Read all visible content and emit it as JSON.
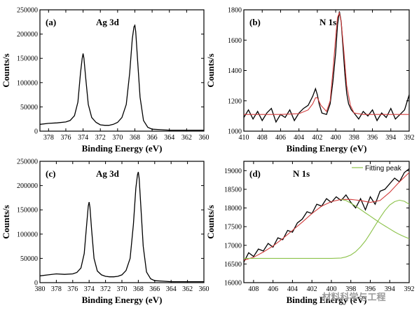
{
  "chart_data": [
    {
      "type": "line",
      "panel_label": "(a)",
      "title": "Ag 3d",
      "xlabel": "Binding Energy (eV)",
      "ylabel": "Counts/s",
      "xlim": [
        379,
        360
      ],
      "ylim": [
        0,
        250000
      ],
      "x_ticks": [
        378,
        376,
        374,
        372,
        370,
        368,
        366,
        364,
        362,
        360
      ],
      "y_ticks": [
        0,
        50000,
        100000,
        150000,
        200000,
        250000
      ],
      "series": [
        {
          "color": "#000000",
          "x": [
            379,
            378,
            377,
            376,
            375.5,
            375,
            374.6,
            374.3,
            374.1,
            374.0,
            373.9,
            373.7,
            373.4,
            373.0,
            372.5,
            372,
            371.5,
            371,
            370.5,
            370,
            369.5,
            369,
            368.6,
            368.3,
            368.1,
            368.0,
            367.9,
            367.7,
            367.4,
            367.0,
            366.5,
            366,
            365,
            364,
            363,
            362,
            361,
            360
          ],
          "y": [
            14000,
            16000,
            17000,
            19000,
            22000,
            32000,
            60000,
            120000,
            150000,
            160000,
            150000,
            110000,
            55000,
            28000,
            18000,
            13000,
            12000,
            12000,
            14000,
            18000,
            28000,
            55000,
            120000,
            190000,
            215000,
            218000,
            205000,
            150000,
            70000,
            22000,
            8000,
            4000,
            3000,
            2000,
            2000,
            2000,
            2000,
            2000
          ]
        }
      ]
    },
    {
      "type": "line",
      "panel_label": "(b)",
      "title": "N 1s",
      "xlabel": "Binding Energy (eV)",
      "ylabel": "Counts/s",
      "xlim": [
        410,
        392
      ],
      "ylim": [
        1000,
        1800
      ],
      "x_ticks": [
        410,
        408,
        406,
        404,
        402,
        400,
        398,
        396,
        394,
        392
      ],
      "y_ticks": [
        1000,
        1200,
        1400,
        1600,
        1800
      ],
      "series": [
        {
          "color": "#000000",
          "x": [
            410,
            409.5,
            409,
            408.5,
            408,
            407.5,
            407,
            406.5,
            406,
            405.5,
            405,
            404.5,
            404,
            403.5,
            403,
            402.5,
            402.2,
            402,
            401.8,
            401.5,
            401,
            400.6,
            400.3,
            400.0,
            399.8,
            399.6,
            399.4,
            399.2,
            399.0,
            398.8,
            398.6,
            398.3,
            398,
            397.5,
            397,
            396.5,
            396,
            395.5,
            395,
            394.5,
            394,
            393.5,
            393,
            392.5,
            392
          ],
          "y": [
            1090,
            1140,
            1080,
            1130,
            1070,
            1120,
            1150,
            1060,
            1110,
            1090,
            1140,
            1070,
            1120,
            1150,
            1170,
            1230,
            1280,
            1240,
            1180,
            1120,
            1110,
            1180,
            1330,
            1520,
            1700,
            1790,
            1720,
            1550,
            1380,
            1250,
            1180,
            1140,
            1120,
            1080,
            1130,
            1100,
            1140,
            1070,
            1120,
            1090,
            1150,
            1080,
            1110,
            1140,
            1240
          ]
        },
        {
          "color": "#d23c3c",
          "x": [
            410,
            408,
            406,
            404,
            403,
            402.5,
            402.2,
            402,
            401.6,
            401,
            400.6,
            400.3,
            400.0,
            399.8,
            399.6,
            399.4,
            399.1,
            398.8,
            398.4,
            398,
            397,
            396,
            394,
            392
          ],
          "y": [
            1110,
            1110,
            1110,
            1115,
            1140,
            1180,
            1220,
            1220,
            1170,
            1130,
            1200,
            1400,
            1620,
            1750,
            1780,
            1720,
            1520,
            1300,
            1170,
            1120,
            1110,
            1110,
            1110,
            1110
          ]
        }
      ]
    },
    {
      "type": "line",
      "panel_label": "(c)",
      "title": "Ag 3d",
      "xlabel": "Binding Energy (eV)",
      "ylabel": "Counts/s",
      "xlim": [
        380,
        360
      ],
      "ylim": [
        0,
        250000
      ],
      "x_ticks": [
        380,
        378,
        376,
        374,
        372,
        370,
        368,
        366,
        364,
        362,
        360
      ],
      "y_ticks": [
        0,
        50000,
        100000,
        150000,
        200000,
        250000
      ],
      "series": [
        {
          "color": "#000000",
          "x": [
            380,
            379,
            378,
            377,
            376,
            375.5,
            375,
            374.6,
            374.3,
            374.1,
            374.0,
            373.9,
            373.7,
            373.4,
            373.0,
            372.5,
            372,
            371.5,
            371,
            370.5,
            370,
            369.5,
            369,
            368.6,
            368.3,
            368.1,
            368.0,
            367.9,
            367.7,
            367.4,
            367.0,
            366.5,
            366,
            365,
            364,
            363,
            362,
            361,
            360
          ],
          "y": [
            14000,
            16000,
            18000,
            17000,
            18000,
            21000,
            30000,
            60000,
            120000,
            158000,
            166000,
            155000,
            110000,
            50000,
            24000,
            16000,
            13000,
            12000,
            12000,
            13000,
            16000,
            25000,
            50000,
            120000,
            195000,
            222000,
            228000,
            215000,
            160000,
            75000,
            22000,
            8000,
            4000,
            3000,
            2000,
            2000,
            2000,
            2000,
            2000
          ]
        }
      ]
    },
    {
      "type": "line",
      "panel_label": "(d)",
      "title": "N 1s",
      "xlabel": "Binding Energy (eV)",
      "ylabel": "Counts/s",
      "xlim": [
        409,
        392
      ],
      "ylim": [
        16000,
        19250
      ],
      "x_ticks": [
        408,
        406,
        404,
        402,
        400,
        398,
        396,
        394,
        392
      ],
      "y_ticks": [
        16000,
        16500,
        17000,
        17500,
        18000,
        18500,
        19000
      ],
      "legend": {
        "label": "Fitting peak",
        "color": "#8cc24a",
        "position": "top-right"
      },
      "series": [
        {
          "color": "#000000",
          "x": [
            409,
            408.5,
            408,
            407.5,
            407,
            406.5,
            406,
            405.5,
            405,
            404.5,
            404,
            403.5,
            403,
            402.5,
            402,
            401.5,
            401,
            400.5,
            400,
            399.5,
            399,
            398.5,
            398,
            397.5,
            397,
            396.5,
            396,
            395.5,
            395,
            394.5,
            394,
            393.5,
            393,
            392.5,
            392
          ],
          "y": [
            16550,
            16800,
            16700,
            16900,
            16850,
            17050,
            16950,
            17200,
            17150,
            17400,
            17350,
            17600,
            17700,
            17900,
            17850,
            18100,
            18050,
            18250,
            18150,
            18300,
            18200,
            18350,
            18150,
            18000,
            18250,
            17950,
            18300,
            18100,
            18450,
            18500,
            18650,
            18800,
            18700,
            18950,
            19050
          ]
        },
        {
          "color": "#d23c3c",
          "x": [
            409,
            408,
            407,
            406,
            405,
            404,
            403,
            402,
            401,
            400,
            399,
            398,
            397,
            396,
            395,
            394,
            393,
            392
          ],
          "y": [
            16600,
            16680,
            16820,
            16980,
            17180,
            17400,
            17620,
            17850,
            18050,
            18170,
            18230,
            18230,
            18200,
            18150,
            18200,
            18420,
            18700,
            18950
          ]
        },
        {
          "color": "#8cc24a",
          "x": [
            409,
            408,
            406,
            404,
            402,
            400,
            399,
            398.5,
            398,
            397.5,
            397,
            396.5,
            396,
            395.5,
            395,
            394.5,
            394,
            393.5,
            393,
            392.5,
            392
          ],
          "y": [
            16650,
            16650,
            16650,
            16650,
            16650,
            16650,
            16660,
            16690,
            16740,
            16830,
            16960,
            17120,
            17320,
            17530,
            17740,
            17930,
            18080,
            18170,
            18210,
            18180,
            18100
          ]
        },
        {
          "color": "#8cc24a",
          "x": [
            399,
            398.5,
            398,
            397.5,
            397,
            396.5,
            396,
            395.5,
            395,
            394.5,
            394,
            393.5,
            393,
            392.5,
            392
          ],
          "y": [
            18230,
            18200,
            18130,
            18050,
            17960,
            17870,
            17780,
            17690,
            17600,
            17520,
            17440,
            17360,
            17290,
            17230,
            17180
          ]
        }
      ]
    }
  ],
  "watermark": "材料科学与工程"
}
